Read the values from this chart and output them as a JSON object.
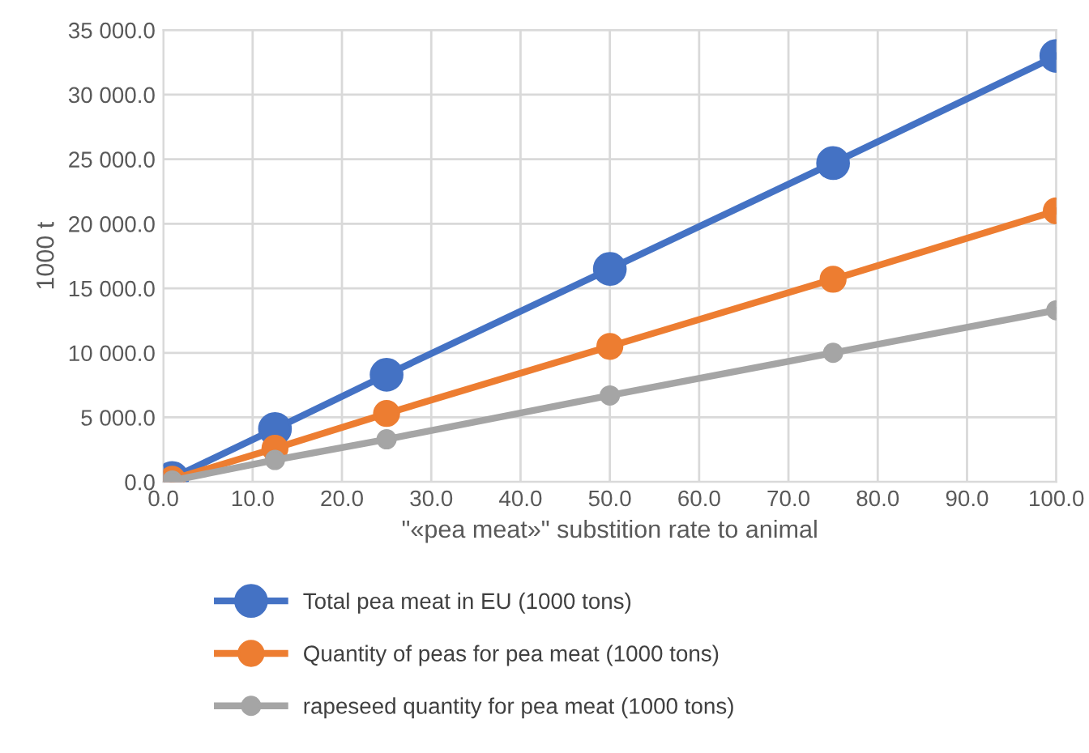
{
  "chart_data": {
    "type": "line",
    "xlabel": "\"«pea meat»\" substition rate to animal",
    "ylabel": "1000 t",
    "x": [
      1,
      12.5,
      25,
      50,
      75,
      100
    ],
    "series": [
      {
        "name": "Total pea meat in EU (1000 tons)",
        "color": "#4472c4",
        "values": [
          300,
          4100,
          8300,
          16500,
          24700,
          33000
        ]
      },
      {
        "name": "Quantity of peas for pea meat (1000 tons)",
        "color": "#ed7d31",
        "values": [
          200,
          2600,
          5300,
          10500,
          15700,
          21000
        ]
      },
      {
        "name": "rapeseed quantity for pea meat (1000 tons)",
        "color": "#a5a5a5",
        "values": [
          100,
          1700,
          3300,
          6700,
          10000,
          13300
        ]
      }
    ],
    "xlim": [
      0,
      100
    ],
    "ylim": [
      0,
      35000
    ],
    "xticks": [
      {
        "value": 0,
        "label": "0.0"
      },
      {
        "value": 10,
        "label": "10.0"
      },
      {
        "value": 20,
        "label": "20.0"
      },
      {
        "value": 30,
        "label": "30.0"
      },
      {
        "value": 40,
        "label": "40.0"
      },
      {
        "value": 50,
        "label": "50.0"
      },
      {
        "value": 60,
        "label": "60.0"
      },
      {
        "value": 70,
        "label": "70.0"
      },
      {
        "value": 80,
        "label": "80.0"
      },
      {
        "value": 90,
        "label": "90.0"
      },
      {
        "value": 100,
        "label": "100.0"
      }
    ],
    "yticks": [
      {
        "value": 0,
        "label": "0.0"
      },
      {
        "value": 5000,
        "label": "5 000.0"
      },
      {
        "value": 10000,
        "label": "10 000.0"
      },
      {
        "value": 15000,
        "label": "15 000.0"
      },
      {
        "value": 20000,
        "label": "20 000.0"
      },
      {
        "value": 25000,
        "label": "25 000.0"
      },
      {
        "value": 30000,
        "label": "30 000.0"
      },
      {
        "value": 35000,
        "label": "35 000.0"
      }
    ],
    "grid": true,
    "legend": "bottom",
    "marker": "circle",
    "line_style": "solid"
  }
}
